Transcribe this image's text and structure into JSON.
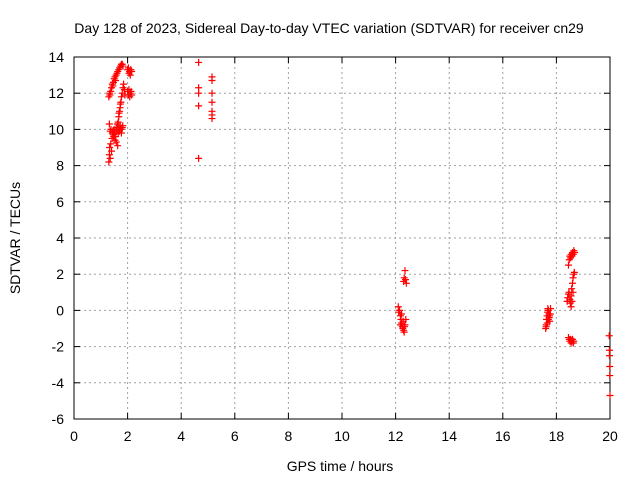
{
  "chart_data": {
    "type": "scatter",
    "title": "Day 128 of 2023, Sidereal Day-to-day VTEC variation (SDTVAR) for receiver cn29",
    "xlabel": "GPS time / hours",
    "ylabel": "SDTVAR / TECUs",
    "xlim": [
      0,
      20
    ],
    "ylim": [
      -6,
      14
    ],
    "xticks": [
      "0",
      "2",
      "4",
      "6",
      "8",
      "10",
      "12",
      "14",
      "16",
      "18",
      "20"
    ],
    "yticks": [
      "-6",
      "-4",
      "-2",
      "0",
      "2",
      "4",
      "6",
      "8",
      "10",
      "12",
      "14"
    ],
    "grid": true,
    "marker": "+",
    "color": "#ff0000",
    "series": [
      {
        "name": "SDTVAR",
        "points": [
          [
            1.3,
            8.2
          ],
          [
            1.32,
            8.6
          ],
          [
            1.33,
            9.0
          ],
          [
            1.35,
            8.4
          ],
          [
            1.37,
            9.2
          ],
          [
            1.4,
            8.8
          ],
          [
            1.42,
            9.5
          ],
          [
            1.45,
            9.9
          ],
          [
            1.47,
            9.7
          ],
          [
            1.5,
            10.0
          ],
          [
            1.52,
            9.8
          ],
          [
            1.55,
            9.6
          ],
          [
            1.57,
            10.1
          ],
          [
            1.6,
            9.9
          ],
          [
            1.62,
            10.3
          ],
          [
            1.65,
            9.8
          ],
          [
            1.67,
            10.0
          ],
          [
            1.7,
            9.9
          ],
          [
            1.72,
            10.2
          ],
          [
            1.75,
            10.0
          ],
          [
            1.77,
            9.8
          ],
          [
            1.8,
            10.1
          ],
          [
            1.82,
            10.2
          ],
          [
            1.35,
            9.9
          ],
          [
            1.38,
            10.0
          ],
          [
            1.43,
            9.8
          ],
          [
            1.48,
            9.6
          ],
          [
            1.53,
            9.4
          ],
          [
            1.58,
            9.3
          ],
          [
            1.63,
            9.1
          ],
          [
            1.32,
            10.3
          ],
          [
            1.34,
            11.9
          ],
          [
            1.37,
            12.1
          ],
          [
            1.4,
            12.3
          ],
          [
            1.43,
            12.5
          ],
          [
            1.47,
            12.6
          ],
          [
            1.5,
            12.8
          ],
          [
            1.53,
            12.9
          ],
          [
            1.57,
            13.0
          ],
          [
            1.6,
            13.1
          ],
          [
            1.63,
            13.2
          ],
          [
            1.67,
            13.3
          ],
          [
            1.7,
            13.4
          ],
          [
            1.73,
            13.5
          ],
          [
            1.77,
            13.6
          ],
          [
            1.8,
            13.6
          ],
          [
            1.83,
            13.5
          ],
          [
            1.3,
            11.8
          ],
          [
            1.33,
            12.0
          ],
          [
            1.45,
            12.4
          ],
          [
            1.55,
            12.7
          ],
          [
            1.65,
            10.4
          ],
          [
            1.67,
            10.7
          ],
          [
            1.7,
            11.0
          ],
          [
            1.72,
            11.2
          ],
          [
            1.75,
            11.5
          ],
          [
            1.77,
            11.8
          ],
          [
            1.8,
            12.0
          ],
          [
            1.83,
            12.3
          ],
          [
            1.85,
            12.5
          ],
          [
            1.88,
            12.2
          ],
          [
            1.9,
            11.9
          ],
          [
            1.68,
            10.9
          ],
          [
            1.73,
            11.4
          ],
          [
            2.0,
            13.3
          ],
          [
            2.03,
            13.4
          ],
          [
            2.05,
            13.1
          ],
          [
            2.07,
            13.2
          ],
          [
            2.1,
            13.0
          ],
          [
            2.12,
            13.3
          ],
          [
            2.15,
            13.2
          ],
          [
            2.0,
            12.1
          ],
          [
            2.03,
            11.9
          ],
          [
            2.05,
            12.2
          ],
          [
            2.08,
            11.8
          ],
          [
            2.1,
            12.0
          ],
          [
            2.13,
            12.1
          ],
          [
            2.15,
            11.9
          ],
          [
            4.65,
            13.7
          ],
          [
            4.65,
            12.3
          ],
          [
            4.65,
            12.0
          ],
          [
            4.65,
            11.3
          ],
          [
            4.65,
            8.4
          ],
          [
            5.15,
            12.9
          ],
          [
            5.15,
            12.7
          ],
          [
            5.15,
            12.0
          ],
          [
            5.15,
            11.5
          ],
          [
            5.15,
            11.0
          ],
          [
            5.15,
            10.8
          ],
          [
            5.15,
            10.6
          ],
          [
            12.1,
            0.2
          ],
          [
            12.12,
            -0.1
          ],
          [
            12.15,
            0.0
          ],
          [
            12.18,
            -0.3
          ],
          [
            12.2,
            -0.5
          ],
          [
            12.22,
            -0.7
          ],
          [
            12.25,
            -0.9
          ],
          [
            12.27,
            -1.0
          ],
          [
            12.3,
            -1.1
          ],
          [
            12.32,
            -1.2
          ],
          [
            12.35,
            -0.8
          ],
          [
            12.38,
            -0.5
          ],
          [
            12.18,
            -0.8
          ],
          [
            12.22,
            -0.2
          ],
          [
            12.28,
            -0.6
          ],
          [
            12.33,
            -0.9
          ],
          [
            12.3,
            1.6
          ],
          [
            12.32,
            1.8
          ],
          [
            12.35,
            2.2
          ],
          [
            12.37,
            1.7
          ],
          [
            12.4,
            1.5
          ],
          [
            17.6,
            -1.0
          ],
          [
            17.62,
            -0.8
          ],
          [
            17.63,
            -0.5
          ],
          [
            17.65,
            -0.3
          ],
          [
            17.67,
            -0.1
          ],
          [
            17.68,
            0.1
          ],
          [
            17.7,
            0.0
          ],
          [
            17.72,
            -0.2
          ],
          [
            17.73,
            -0.4
          ],
          [
            17.75,
            -0.6
          ],
          [
            17.77,
            -0.2
          ],
          [
            17.78,
            0.1
          ],
          [
            17.62,
            -0.9
          ],
          [
            17.66,
            -0.7
          ],
          [
            17.7,
            -0.5
          ],
          [
            17.74,
            -0.3
          ],
          [
            18.4,
            0.5
          ],
          [
            18.42,
            0.7
          ],
          [
            18.45,
            0.9
          ],
          [
            18.47,
            1.0
          ],
          [
            18.5,
            0.6
          ],
          [
            18.52,
            0.4
          ],
          [
            18.55,
            0.8
          ],
          [
            18.57,
            1.2
          ],
          [
            18.6,
            1.5
          ],
          [
            18.62,
            1.8
          ],
          [
            18.65,
            2.0
          ],
          [
            18.67,
            2.1
          ],
          [
            18.45,
            2.5
          ],
          [
            18.48,
            2.8
          ],
          [
            18.5,
            3.0
          ],
          [
            18.53,
            2.9
          ],
          [
            18.55,
            3.1
          ],
          [
            18.58,
            3.0
          ],
          [
            18.6,
            3.2
          ],
          [
            18.63,
            3.1
          ],
          [
            18.65,
            3.3
          ],
          [
            18.68,
            3.2
          ],
          [
            18.45,
            -1.5
          ],
          [
            18.48,
            -1.6
          ],
          [
            18.5,
            -1.7
          ],
          [
            18.53,
            -1.6
          ],
          [
            18.55,
            -1.8
          ],
          [
            18.58,
            -1.7
          ],
          [
            18.6,
            -1.6
          ],
          [
            18.63,
            -1.8
          ],
          [
            18.65,
            -1.7
          ],
          [
            18.55,
            0.2
          ],
          [
            18.58,
            0.5
          ],
          [
            18.62,
            1.0
          ],
          [
            19.97,
            -1.4
          ],
          [
            19.98,
            -2.2
          ],
          [
            19.98,
            -2.5
          ],
          [
            19.99,
            -3.1
          ],
          [
            19.99,
            -3.6
          ],
          [
            20.0,
            -4.7
          ]
        ]
      }
    ]
  }
}
